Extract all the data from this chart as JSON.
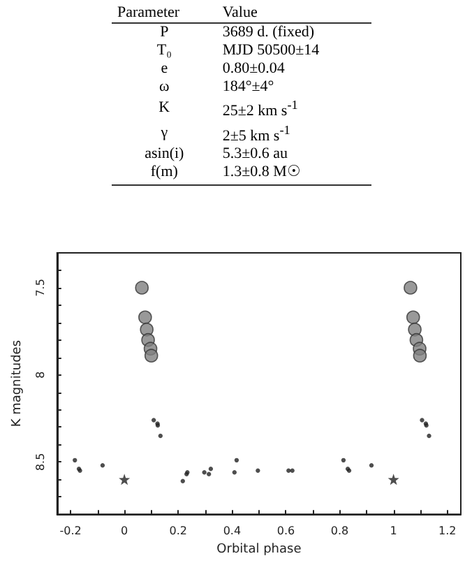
{
  "chart_data": [
    {
      "type": "other",
      "annotations": [
        "Parameter",
        "Value",
        "P",
        "3689 d. (fixed)",
        "T₀",
        "MJD 50500±14",
        "e",
        "0.80±0.04",
        "ω",
        "184°±4°",
        "K",
        "25±2 km s$^{-1}$",
        "γ",
        "2±5 km s$^{-1}$",
        "asin(i)",
        "5.3±0.6 au",
        "f(m)",
        "1.3±0.8 M☉"
      ]
    },
    {
      "type": "scatter",
      "xlabel": "Orbital phase",
      "ylabel": "K magnitudes",
      "xlim": [
        -0.25,
        1.25
      ],
      "ylim": [
        8.8,
        7.3
      ],
      "xticks": [
        -0.2,
        {
          "value": -0.1,
          "label": null
        },
        0,
        {
          "value": 0.1,
          "label": null
        },
        0.2,
        {
          "value": 0.3,
          "label": null
        },
        0.4,
        {
          "value": 0.5,
          "label": null
        },
        0.6,
        {
          "value": 0.7,
          "label": null
        },
        0.8,
        {
          "value": 0.9,
          "label": null
        },
        1,
        {
          "value": 1.1,
          "label": null
        },
        1.2
      ],
      "yticks": [
        {
          "value": 7.4,
          "label": null
        },
        7.5,
        {
          "value": 7.6,
          "label": null
        },
        {
          "value": 7.7,
          "label": null
        },
        {
          "value": 7.8,
          "label": null
        },
        {
          "value": 7.9,
          "label": null
        },
        8,
        {
          "value": 8.1,
          "label": null
        },
        {
          "value": 8.2,
          "label": null
        },
        {
          "value": 8.3,
          "label": null
        },
        {
          "value": 8.4,
          "label": null
        },
        8.5,
        {
          "value": 8.6,
          "label": null
        },
        {
          "value": 8.7,
          "label": null
        }
      ],
      "grid": false,
      "series": [
        {
          "marker": "circle",
          "color": "#808080",
          "x": [
            0.065,
            0.077,
            0.083,
            0.088,
            0.097,
            0.1,
            1.063,
            1.073,
            1.079,
            1.085,
            1.097,
            1.098
          ],
          "values": [
            7.5,
            7.67,
            7.74,
            7.8,
            7.85,
            7.89,
            7.5,
            7.67,
            7.74,
            7.8,
            7.85,
            7.89
          ]
        },
        {
          "marker": "circle",
          "color": "#222222",
          "x": [
            -0.184,
            -0.169,
            -0.165,
            -0.081,
            0.109,
            0.123,
            0.124,
            0.134,
            0.217,
            0.231,
            0.234,
            0.297,
            0.314,
            0.321,
            0.409,
            0.417,
            0.496,
            0.61,
            0.624,
            0.814,
            0.83,
            0.835,
            0.918,
            1.106,
            1.12,
            1.122,
            1.132
          ],
          "values": [
            8.49,
            8.54,
            8.55,
            8.52,
            8.26,
            8.28,
            8.29,
            8.35,
            8.61,
            8.57,
            8.56,
            8.56,
            8.57,
            8.54,
            8.56,
            8.49,
            8.55,
            8.55,
            8.55,
            8.49,
            8.54,
            8.55,
            8.52,
            8.26,
            8.28,
            8.29,
            8.35
          ]
        },
        {
          "marker": "star",
          "color": "#222222",
          "x": [
            0.0,
            1.0
          ],
          "values": [
            8.6,
            8.6
          ]
        }
      ]
    }
  ]
}
